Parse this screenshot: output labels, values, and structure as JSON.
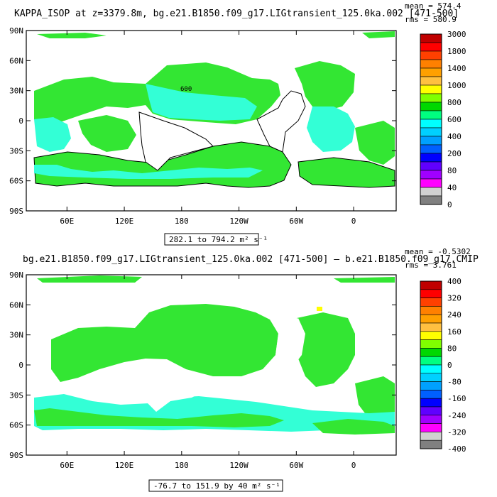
{
  "chart_data": [
    {
      "type": "heatmap",
      "title": "KAPPA_ISOP at z=3379.8m, bg.e21.B1850.f09_g17.LIGtransient_125.0ka.002 [471-500]",
      "mean_text": "mean = 574.4",
      "rms_text": "rms = 580.9",
      "range_text": "282.1 to 794.2 m² s⁻¹",
      "contour_label": "600",
      "y_ticks": [
        "90N",
        "60N",
        "30N",
        "0",
        "30S",
        "60S",
        "90S"
      ],
      "x_ticks": [
        "60E",
        "120E",
        "180",
        "120W",
        "60W",
        "0"
      ],
      "colorbar_labels": [
        "3000",
        "1800",
        "1400",
        "1000",
        "800",
        "600",
        "400",
        "200",
        "80",
        "40",
        "0"
      ],
      "colors": [
        "#c00000",
        "#ff0000",
        "#ff4000",
        "#ff8000",
        "#ffa000",
        "#ffc040",
        "#ffff00",
        "#80ff00",
        "#00d800",
        "#00ff80",
        "#00ffff",
        "#00d0ff",
        "#00a0ff",
        "#0060ff",
        "#0000ff",
        "#6000ff",
        "#a000ff",
        "#ff00ff",
        "#d0d0d0",
        "#808080"
      ],
      "land_color": "#ffffff",
      "dominant_colors": {
        "high": "#33e633",
        "low": "#33ffd6"
      }
    },
    {
      "type": "heatmap",
      "title": "bg.e21.B1850.f09_g17.LIGtransient_125.0ka.002 [471-500] – b.e21.B1850.f09_g17.CMIP",
      "mean_text": "mean = -0.5302",
      "rms_text": "rms = 3.761",
      "range_text": "-76.7 to 151.9 by 40 m² s⁻¹",
      "y_ticks": [
        "90N",
        "60N",
        "30N",
        "0",
        "30S",
        "60S",
        "90S"
      ],
      "x_ticks": [
        "60E",
        "120E",
        "180",
        "120W",
        "60W",
        "0"
      ],
      "colorbar_labels": [
        "400",
        "320",
        "240",
        "160",
        "80",
        "0",
        "-80",
        "-160",
        "-240",
        "-320",
        "-400"
      ],
      "colors": [
        "#c00000",
        "#ff0000",
        "#ff4000",
        "#ff8000",
        "#ffa000",
        "#ffc040",
        "#ffff00",
        "#80ff00",
        "#00d800",
        "#00ff80",
        "#00ffff",
        "#00d0ff",
        "#00a0ff",
        "#0060ff",
        "#0000ff",
        "#6000ff",
        "#a000ff",
        "#ff00ff",
        "#d0d0d0",
        "#808080"
      ],
      "land_color": "#ffffff",
      "dominant_colors": {
        "high": "#33e633",
        "low": "#33ffd6"
      }
    }
  ]
}
